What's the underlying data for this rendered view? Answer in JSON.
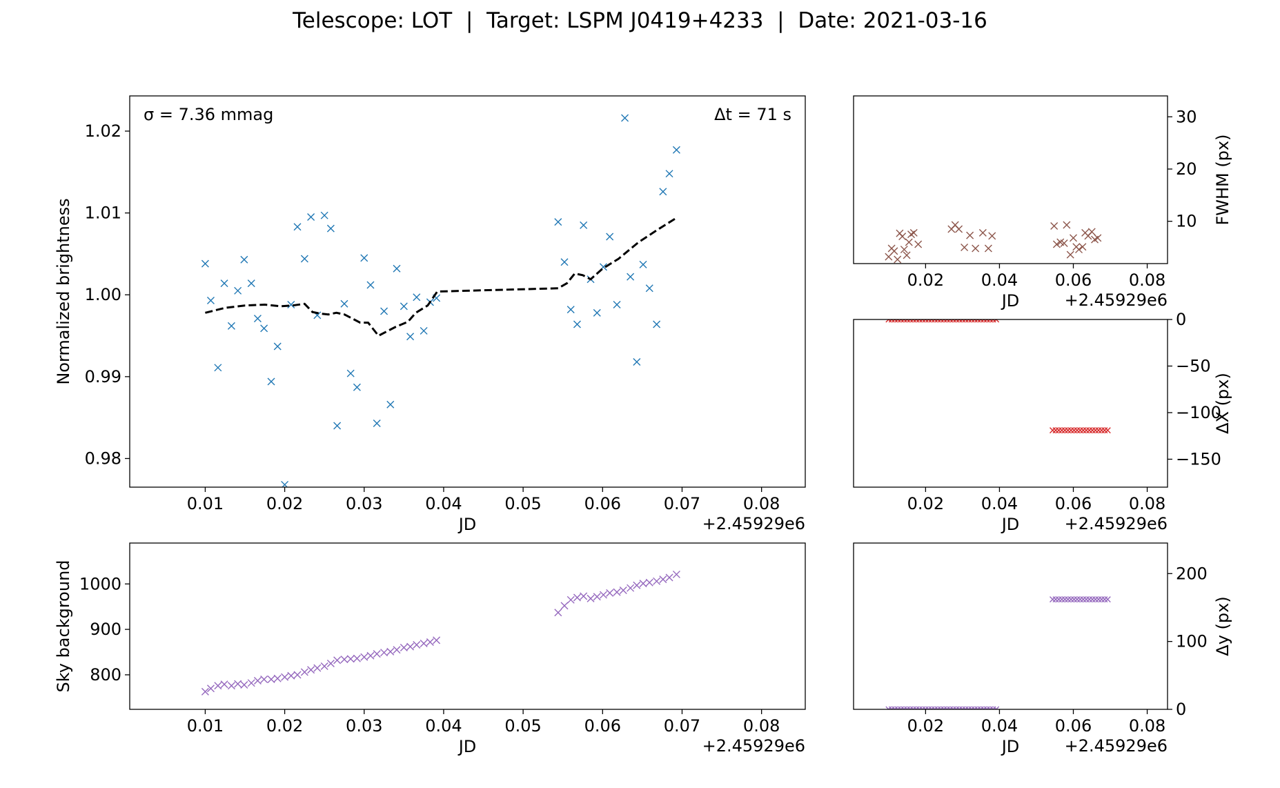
{
  "figure": {
    "title": "Telescope: LOT  |  Target: LSPM J0419+4233  |  Date: 2021-03-16"
  },
  "chart_data": [
    {
      "id": "brightness",
      "type": "scatter",
      "xlabel": "JD",
      "ylabel": "Normalized brightness",
      "x_offset_label": "+2.45929e6",
      "xlim": [
        0.0005,
        0.0855
      ],
      "ylim": [
        0.9765,
        1.0243
      ],
      "xticks": [
        0.01,
        0.02,
        0.03,
        0.04,
        0.05,
        0.06,
        0.07,
        0.08
      ],
      "yticks": [
        0.98,
        0.99,
        1.0,
        1.01,
        1.02
      ],
      "xtick_labels": [
        "0.01",
        "0.02",
        "0.03",
        "0.04",
        "0.05",
        "0.06",
        "0.07",
        "0.08"
      ],
      "ytick_labels": [
        "0.98",
        "0.99",
        "1.00",
        "1.01",
        "1.02"
      ],
      "annotations": {
        "left": "σ = 7.36 mmag",
        "right": "Δt = 71 s"
      },
      "colors": {
        "points": "#1f77b4",
        "trend": "#000000"
      },
      "series": [
        {
          "marker": "x",
          "points": [
            [
              0.01,
              1.0038
            ],
            [
              0.0107,
              0.9993
            ],
            [
              0.0116,
              0.9911
            ],
            [
              0.0124,
              1.0014
            ],
            [
              0.0133,
              0.9962
            ],
            [
              0.0141,
              1.0005
            ],
            [
              0.0149,
              1.0043
            ],
            [
              0.0158,
              1.0014
            ],
            [
              0.0166,
              0.9971
            ],
            [
              0.0174,
              0.9959
            ],
            [
              0.0183,
              0.9894
            ],
            [
              0.0191,
              0.9937
            ],
            [
              0.02,
              0.9768
            ],
            [
              0.0208,
              0.9988
            ],
            [
              0.0216,
              1.0083
            ],
            [
              0.0225,
              1.0044
            ],
            [
              0.0233,
              1.0095
            ],
            [
              0.0241,
              0.9975
            ],
            [
              0.025,
              1.0097
            ],
            [
              0.0258,
              1.0081
            ],
            [
              0.0266,
              0.984
            ],
            [
              0.0275,
              0.9989
            ],
            [
              0.0283,
              0.9904
            ],
            [
              0.0291,
              0.9887
            ],
            [
              0.03,
              1.0045
            ],
            [
              0.0308,
              1.0012
            ],
            [
              0.0316,
              0.9843
            ],
            [
              0.0325,
              0.998
            ],
            [
              0.0333,
              0.9866
            ],
            [
              0.0341,
              1.0032
            ],
            [
              0.035,
              0.9986
            ],
            [
              0.0358,
              0.9949
            ],
            [
              0.0366,
              0.9997
            ],
            [
              0.0375,
              0.9956
            ],
            [
              0.0383,
              0.9991
            ],
            [
              0.0391,
              0.9996
            ],
            [
              0.0544,
              1.0089
            ],
            [
              0.0552,
              1.004
            ],
            [
              0.056,
              0.9982
            ],
            [
              0.0568,
              0.9964
            ],
            [
              0.0576,
              1.0085
            ],
            [
              0.0585,
              1.0019
            ],
            [
              0.0593,
              0.9978
            ],
            [
              0.0601,
              1.0034
            ],
            [
              0.0609,
              1.0071
            ],
            [
              0.0618,
              0.9988
            ],
            [
              0.0628,
              1.0216
            ],
            [
              0.0635,
              1.0022
            ],
            [
              0.0643,
              0.9918
            ],
            [
              0.0651,
              1.0037
            ],
            [
              0.0659,
              1.0008
            ],
            [
              0.0668,
              0.9964
            ],
            [
              0.0676,
              1.0126
            ],
            [
              0.0684,
              1.0148
            ],
            [
              0.0693,
              1.0177
            ]
          ]
        },
        {
          "style": "dashed-line",
          "points": [
            [
              0.01,
              0.9978
            ],
            [
              0.0125,
              0.9984
            ],
            [
              0.015,
              0.9987
            ],
            [
              0.0175,
              0.9988
            ],
            [
              0.0195,
              0.9986
            ],
            [
              0.021,
              0.9987
            ],
            [
              0.0225,
              0.9989
            ],
            [
              0.0235,
              0.9979
            ],
            [
              0.0245,
              0.9977
            ],
            [
              0.0255,
              0.9976
            ],
            [
              0.0265,
              0.9978
            ],
            [
              0.0275,
              0.9976
            ],
            [
              0.0285,
              0.9971
            ],
            [
              0.0295,
              0.9966
            ],
            [
              0.0305,
              0.9966
            ],
            [
              0.0318,
              0.995
            ],
            [
              0.0328,
              0.9955
            ],
            [
              0.034,
              0.9961
            ],
            [
              0.0355,
              0.9967
            ],
            [
              0.0365,
              0.9978
            ],
            [
              0.038,
              0.9987
            ],
            [
              0.0392,
              1.0004
            ],
            [
              0.0544,
              1.0008
            ],
            [
              0.0555,
              1.0014
            ],
            [
              0.0565,
              1.0026
            ],
            [
              0.0575,
              1.0024
            ],
            [
              0.0585,
              1.0019
            ],
            [
              0.06,
              1.0032
            ],
            [
              0.062,
              1.0044
            ],
            [
              0.0645,
              1.0064
            ],
            [
              0.067,
              1.008
            ],
            [
              0.0693,
              1.0094
            ]
          ]
        }
      ]
    },
    {
      "id": "fwhm",
      "type": "scatter",
      "xlabel": "JD",
      "ylabel": "FWHM (px)",
      "x_offset_label": "+2.45929e6",
      "xlim": [
        0.0005,
        0.0855
      ],
      "ylim": [
        1.9,
        34
      ],
      "xticks": [
        0.02,
        0.04,
        0.06,
        0.08
      ],
      "yticks": [
        10,
        20,
        30
      ],
      "xtick_labels": [
        "0.02",
        "0.04",
        "0.06",
        "0.08"
      ],
      "ytick_labels": [
        "10",
        "20",
        "30"
      ],
      "colors": {
        "points": "#8c564b"
      },
      "series": [
        {
          "marker": "x",
          "points": [
            [
              0.01,
              3.2
            ],
            [
              0.0108,
              4.8
            ],
            [
              0.0115,
              4.3
            ],
            [
              0.0124,
              2.7
            ],
            [
              0.013,
              7.7
            ],
            [
              0.0137,
              7.1
            ],
            [
              0.0142,
              4.6
            ],
            [
              0.0149,
              3.5
            ],
            [
              0.0155,
              6.0
            ],
            [
              0.0161,
              7.5
            ],
            [
              0.0168,
              7.8
            ],
            [
              0.018,
              5.6
            ],
            [
              0.027,
              8.5
            ],
            [
              0.028,
              9.3
            ],
            [
              0.029,
              8.5
            ],
            [
              0.0305,
              5.0
            ],
            [
              0.032,
              7.3
            ],
            [
              0.0335,
              4.8
            ],
            [
              0.0355,
              7.8
            ],
            [
              0.037,
              4.8
            ],
            [
              0.038,
              7.2
            ],
            [
              0.0548,
              9.1
            ],
            [
              0.0555,
              5.6
            ],
            [
              0.0565,
              6.0
            ],
            [
              0.0575,
              5.8
            ],
            [
              0.0582,
              9.3
            ],
            [
              0.0592,
              3.6
            ],
            [
              0.06,
              6.8
            ],
            [
              0.0608,
              5.1
            ],
            [
              0.0615,
              4.6
            ],
            [
              0.0625,
              5.1
            ],
            [
              0.0632,
              7.8
            ],
            [
              0.064,
              7.2
            ],
            [
              0.065,
              8.0
            ],
            [
              0.0658,
              6.5
            ],
            [
              0.0666,
              6.8
            ]
          ]
        }
      ]
    },
    {
      "id": "delta-x",
      "type": "scatter",
      "xlabel": "JD",
      "ylabel": "ΔX (px)",
      "x_offset_label": "+2.45929e6",
      "xlim": [
        0.0005,
        0.0855
      ],
      "ylim": [
        -180,
        0
      ],
      "xticks": [
        0.02,
        0.04,
        0.06,
        0.08
      ],
      "yticks": [
        0,
        -50,
        -100,
        -150
      ],
      "xtick_labels": [
        "0.02",
        "0.04",
        "0.06",
        "0.08"
      ],
      "ytick_labels": [
        "0",
        "−50",
        "−100",
        "−150"
      ],
      "colors": {
        "points": "#d62728"
      },
      "series": [
        {
          "marker": "x",
          "segments": [
            {
              "x_start": 0.01,
              "x_end": 0.0391,
              "count": 36,
              "y": 0
            },
            {
              "x_start": 0.0544,
              "x_end": 0.0693,
              "count": 19,
              "y": -119
            }
          ]
        }
      ]
    },
    {
      "id": "sky",
      "type": "scatter",
      "xlabel": "JD",
      "ylabel": "Sky background",
      "x_offset_label": "+2.45929e6",
      "xlim": [
        0.0005,
        0.0855
      ],
      "ylim": [
        724,
        1090
      ],
      "xticks": [
        0.01,
        0.02,
        0.03,
        0.04,
        0.05,
        0.06,
        0.07,
        0.08
      ],
      "yticks": [
        800,
        900,
        1000
      ],
      "xtick_labels": [
        "0.01",
        "0.02",
        "0.03",
        "0.04",
        "0.05",
        "0.06",
        "0.07",
        "0.08"
      ],
      "ytick_labels": [
        "800",
        "900",
        "1000"
      ],
      "colors": {
        "points": "#9467bd"
      },
      "series": [
        {
          "marker": "x",
          "points": [
            [
              0.01,
              763
            ],
            [
              0.0107,
              770
            ],
            [
              0.0116,
              776
            ],
            [
              0.0124,
              779
            ],
            [
              0.0133,
              776
            ],
            [
              0.0141,
              780
            ],
            [
              0.0149,
              778
            ],
            [
              0.0158,
              782
            ],
            [
              0.0166,
              787
            ],
            [
              0.0174,
              790
            ],
            [
              0.0183,
              790
            ],
            [
              0.0191,
              792
            ],
            [
              0.02,
              795
            ],
            [
              0.0208,
              798
            ],
            [
              0.0216,
              800
            ],
            [
              0.0225,
              806
            ],
            [
              0.0233,
              811
            ],
            [
              0.0241,
              815
            ],
            [
              0.025,
              819
            ],
            [
              0.0258,
              825
            ],
            [
              0.0266,
              832
            ],
            [
              0.0275,
              834
            ],
            [
              0.0283,
              835
            ],
            [
              0.0291,
              836
            ],
            [
              0.03,
              839
            ],
            [
              0.0308,
              842
            ],
            [
              0.0316,
              846
            ],
            [
              0.0325,
              849
            ],
            [
              0.0333,
              851
            ],
            [
              0.0341,
              855
            ],
            [
              0.035,
              860
            ],
            [
              0.0358,
              862
            ],
            [
              0.0366,
              866
            ],
            [
              0.0375,
              869
            ],
            [
              0.0383,
              872
            ],
            [
              0.0391,
              876
            ],
            [
              0.0544,
              937
            ],
            [
              0.0552,
              952
            ],
            [
              0.056,
              965
            ],
            [
              0.0568,
              970
            ],
            [
              0.0576,
              973
            ],
            [
              0.0585,
              968
            ],
            [
              0.0593,
              972
            ],
            [
              0.0601,
              976
            ],
            [
              0.0609,
              980
            ],
            [
              0.0618,
              982
            ],
            [
              0.0626,
              986
            ],
            [
              0.0635,
              991
            ],
            [
              0.0643,
              997
            ],
            [
              0.0651,
              1001
            ],
            [
              0.0659,
              1003
            ],
            [
              0.0668,
              1006
            ],
            [
              0.0676,
              1010
            ],
            [
              0.0684,
              1014
            ],
            [
              0.0693,
              1021
            ]
          ]
        }
      ]
    },
    {
      "id": "delta-y",
      "type": "scatter",
      "xlabel": "JD",
      "ylabel": "Δy (px)",
      "x_offset_label": "+2.45929e6",
      "xlim": [
        0.0005,
        0.0855
      ],
      "ylim": [
        0,
        245
      ],
      "xticks": [
        0.02,
        0.04,
        0.06,
        0.08
      ],
      "yticks": [
        0,
        100,
        200
      ],
      "xtick_labels": [
        "0.02",
        "0.04",
        "0.06",
        "0.08"
      ],
      "ytick_labels": [
        "0",
        "100",
        "200"
      ],
      "colors": {
        "points": "#9467bd"
      },
      "series": [
        {
          "marker": "x",
          "segments": [
            {
              "x_start": 0.01,
              "x_end": 0.0391,
              "count": 36,
              "y": 0
            },
            {
              "x_start": 0.0544,
              "x_end": 0.0693,
              "count": 19,
              "y": 162
            }
          ]
        }
      ]
    }
  ]
}
